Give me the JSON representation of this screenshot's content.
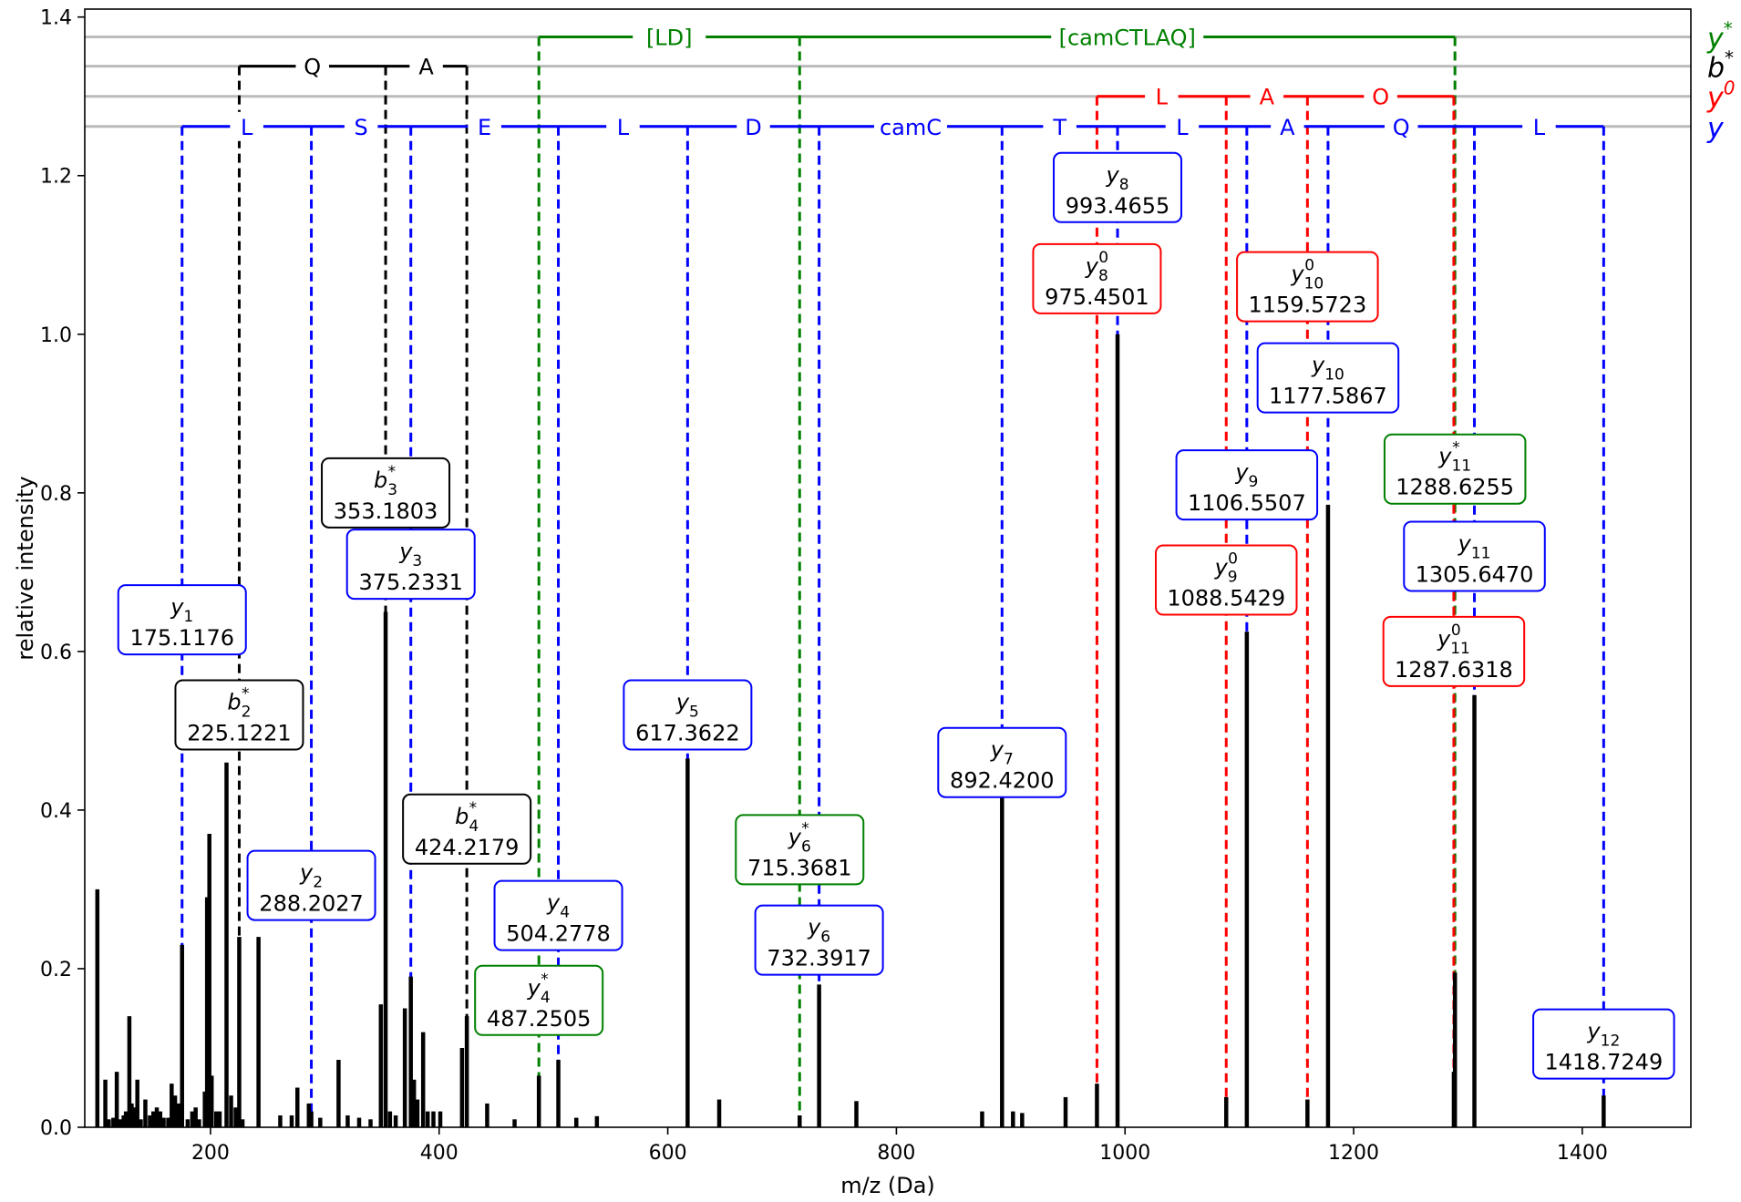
{
  "chart_data": {
    "type": "bar",
    "xlabel": "m/z (Da)",
    "ylabel": "relative intensity",
    "xlim": [
      90,
      1495
    ],
    "ylim": [
      0,
      1.41
    ],
    "x_ticks": [
      200,
      400,
      600,
      800,
      1000,
      1200,
      1400
    ],
    "x_tick_labels": [
      "200",
      "400",
      "600",
      "800",
      "1000",
      "1200",
      "1400"
    ],
    "y_ticks": [
      0.0,
      0.2,
      0.4,
      0.6,
      0.8,
      1.0,
      1.2,
      1.4
    ],
    "y_tick_labels": [
      "0.0",
      "0.2",
      "0.4",
      "0.6",
      "0.8",
      "1.0",
      "1.2",
      "1.4"
    ],
    "colors": {
      "y": "#0000ff",
      "b_star": "#000000",
      "y_zero": "#ff0000",
      "y_star": "#008000",
      "peaks": "#000000",
      "series_rules": "#bbbbbb"
    },
    "peaks": [
      {
        "mz": 101,
        "i": 0.3
      },
      {
        "mz": 108,
        "i": 0.06
      },
      {
        "mz": 111,
        "i": 0.01
      },
      {
        "mz": 115,
        "i": 0.012
      },
      {
        "mz": 118,
        "i": 0.07
      },
      {
        "mz": 121,
        "i": 0.01
      },
      {
        "mz": 124,
        "i": 0.015
      },
      {
        "mz": 126,
        "i": 0.02
      },
      {
        "mz": 129,
        "i": 0.14
      },
      {
        "mz": 131,
        "i": 0.03
      },
      {
        "mz": 133,
        "i": 0.025
      },
      {
        "mz": 136,
        "i": 0.06
      },
      {
        "mz": 139,
        "i": 0.01
      },
      {
        "mz": 143,
        "i": 0.035
      },
      {
        "mz": 147,
        "i": 0.015
      },
      {
        "mz": 150,
        "i": 0.02
      },
      {
        "mz": 153,
        "i": 0.025
      },
      {
        "mz": 156,
        "i": 0.02
      },
      {
        "mz": 159,
        "i": 0.012
      },
      {
        "mz": 163,
        "i": 0.012
      },
      {
        "mz": 166,
        "i": 0.055
      },
      {
        "mz": 169,
        "i": 0.04
      },
      {
        "mz": 172,
        "i": 0.03
      },
      {
        "mz": 175.1176,
        "i": 0.23
      },
      {
        "mz": 180,
        "i": 0.01
      },
      {
        "mz": 184,
        "i": 0.02
      },
      {
        "mz": 187,
        "i": 0.025
      },
      {
        "mz": 190,
        "i": 0.01
      },
      {
        "mz": 195,
        "i": 0.045
      },
      {
        "mz": 197,
        "i": 0.29
      },
      {
        "mz": 199,
        "i": 0.37
      },
      {
        "mz": 201,
        "i": 0.065
      },
      {
        "mz": 205,
        "i": 0.02
      },
      {
        "mz": 208,
        "i": 0.02
      },
      {
        "mz": 214,
        "i": 0.46
      },
      {
        "mz": 218,
        "i": 0.04
      },
      {
        "mz": 222,
        "i": 0.025
      },
      {
        "mz": 225.1221,
        "i": 0.24
      },
      {
        "mz": 228,
        "i": 0.01
      },
      {
        "mz": 242,
        "i": 0.24
      },
      {
        "mz": 261,
        "i": 0.015
      },
      {
        "mz": 271,
        "i": 0.015
      },
      {
        "mz": 276,
        "i": 0.05
      },
      {
        "mz": 286,
        "i": 0.03
      },
      {
        "mz": 288.2027,
        "i": 0.02
      },
      {
        "mz": 296,
        "i": 0.012
      },
      {
        "mz": 312,
        "i": 0.085
      },
      {
        "mz": 320,
        "i": 0.015
      },
      {
        "mz": 330,
        "i": 0.012
      },
      {
        "mz": 340,
        "i": 0.01
      },
      {
        "mz": 349,
        "i": 0.155
      },
      {
        "mz": 353.1803,
        "i": 0.65
      },
      {
        "mz": 357,
        "i": 0.02
      },
      {
        "mz": 362,
        "i": 0.015
      },
      {
        "mz": 370,
        "i": 0.15
      },
      {
        "mz": 375.2331,
        "i": 0.19
      },
      {
        "mz": 378,
        "i": 0.06
      },
      {
        "mz": 381,
        "i": 0.035
      },
      {
        "mz": 386,
        "i": 0.12
      },
      {
        "mz": 390,
        "i": 0.02
      },
      {
        "mz": 395,
        "i": 0.02
      },
      {
        "mz": 401,
        "i": 0.02
      },
      {
        "mz": 420,
        "i": 0.1
      },
      {
        "mz": 424.2179,
        "i": 0.14
      },
      {
        "mz": 442,
        "i": 0.03
      },
      {
        "mz": 466,
        "i": 0.01
      },
      {
        "mz": 487.2505,
        "i": 0.065
      },
      {
        "mz": 504.2778,
        "i": 0.085
      },
      {
        "mz": 520,
        "i": 0.012
      },
      {
        "mz": 538,
        "i": 0.014
      },
      {
        "mz": 617.3622,
        "i": 0.465
      },
      {
        "mz": 645,
        "i": 0.035
      },
      {
        "mz": 715.3681,
        "i": 0.015
      },
      {
        "mz": 732.3917,
        "i": 0.18
      },
      {
        "mz": 765,
        "i": 0.033
      },
      {
        "mz": 875,
        "i": 0.02
      },
      {
        "mz": 892.42,
        "i": 0.42
      },
      {
        "mz": 902,
        "i": 0.02
      },
      {
        "mz": 910,
        "i": 0.018
      },
      {
        "mz": 948,
        "i": 0.038
      },
      {
        "mz": 975.4501,
        "i": 0.055
      },
      {
        "mz": 993.4655,
        "i": 1.0
      },
      {
        "mz": 1088.5429,
        "i": 0.038
      },
      {
        "mz": 1106.5507,
        "i": 0.625
      },
      {
        "mz": 1159.5723,
        "i": 0.035
      },
      {
        "mz": 1177.5867,
        "i": 0.785
      },
      {
        "mz": 1287.6318,
        "i": 0.07
      },
      {
        "mz": 1288.6255,
        "i": 0.195
      },
      {
        "mz": 1305.647,
        "i": 0.545
      },
      {
        "mz": 1418.7249,
        "i": 0.04
      }
    ],
    "fragment_lines": [
      {
        "series": "b_star",
        "x": 225.1221,
        "y_top": 1.338
      },
      {
        "series": "b_star",
        "x": 353.1803,
        "y_top": 1.338
      },
      {
        "series": "b_star",
        "x": 424.2179,
        "y_top": 1.338
      },
      {
        "series": "y_star",
        "x": 487.2505,
        "y_top": 1.375
      },
      {
        "series": "y_star",
        "x": 715.3681,
        "y_top": 1.375
      },
      {
        "series": "y_star",
        "x": 1288.6255,
        "y_top": 1.375
      },
      {
        "series": "y_zero",
        "x": 975.4501,
        "y_top": 1.3
      },
      {
        "series": "y_zero",
        "x": 1088.5429,
        "y_top": 1.3
      },
      {
        "series": "y_zero",
        "x": 1159.5723,
        "y_top": 1.3
      },
      {
        "series": "y_zero",
        "x": 1287.6318,
        "y_top": 1.3
      },
      {
        "series": "y",
        "x": 175.1176,
        "y_top": 1.262
      },
      {
        "series": "y",
        "x": 288.2027,
        "y_top": 1.262
      },
      {
        "series": "y",
        "x": 375.2331,
        "y_top": 1.262
      },
      {
        "series": "y",
        "x": 504.2778,
        "y_top": 1.262
      },
      {
        "series": "y",
        "x": 617.3622,
        "y_top": 1.262
      },
      {
        "series": "y",
        "x": 732.3917,
        "y_top": 1.262
      },
      {
        "series": "y",
        "x": 892.42,
        "y_top": 1.262
      },
      {
        "series": "y",
        "x": 993.4655,
        "y_top": 1.262
      },
      {
        "series": "y",
        "x": 1106.5507,
        "y_top": 1.262
      },
      {
        "series": "y",
        "x": 1177.5867,
        "y_top": 1.262
      },
      {
        "series": "y",
        "x": 1305.647,
        "y_top": 1.262
      },
      {
        "series": "y",
        "x": 1418.7249,
        "y_top": 1.262
      }
    ],
    "series_rules": [
      {
        "series": "y_star",
        "y": 1.375,
        "legend_base": "y",
        "legend_sup": "*"
      },
      {
        "series": "b_star",
        "y": 1.338,
        "legend_base": "b",
        "legend_sup": "*"
      },
      {
        "series": "y_zero",
        "y": 1.3,
        "legend_base": "y",
        "legend_sup": "0"
      },
      {
        "series": "y",
        "y": 1.262,
        "legend_base": "y",
        "legend_sup": ""
      }
    ],
    "sequence_ladders": [
      {
        "series": "y",
        "y": 1.262,
        "x_start": 175.1176,
        "x_end": 1418.7249,
        "labels": [
          {
            "text": "L",
            "x": 231.66
          },
          {
            "text": "S",
            "x": 331.72
          },
          {
            "text": "E",
            "x": 439.76
          },
          {
            "text": "L",
            "x": 560.82
          },
          {
            "text": "D",
            "x": 674.88
          },
          {
            "text": "camC",
            "x": 812.41
          },
          {
            "text": "T",
            "x": 942.94
          },
          {
            "text": "L",
            "x": 1050.01
          },
          {
            "text": "A",
            "x": 1142.07
          },
          {
            "text": "Q",
            "x": 1241.62
          },
          {
            "text": "L",
            "x": 1362.19
          }
        ]
      },
      {
        "series": "y_zero",
        "y": 1.3,
        "x_start": 975.4501,
        "x_end": 1287.6318,
        "labels": [
          {
            "text": "L",
            "x": 1032.0
          },
          {
            "text": "A",
            "x": 1124.06
          },
          {
            "text": "O",
            "x": 1223.6
          }
        ]
      },
      {
        "series": "b_star",
        "y": 1.338,
        "x_start": 225.1221,
        "x_end": 424.2179,
        "labels": [
          {
            "text": "Q",
            "x": 289.15
          },
          {
            "text": "A",
            "x": 388.7
          }
        ]
      },
      {
        "series": "y_star",
        "y": 1.375,
        "x_start": 487.2505,
        "x_end": 1288.6255,
        "labels": [
          {
            "text": "[LD]",
            "x": 601.31
          },
          {
            "text": "[camCTLAQ]",
            "x": 1002.0
          }
        ]
      }
    ],
    "annotations": [
      {
        "series": "y",
        "ion": "y",
        "sub": "1",
        "sup": "",
        "mz_label": "175.1176",
        "x": 175.1176,
        "y": 0.64
      },
      {
        "series": "b_star",
        "ion": "b",
        "sub": "2",
        "sup": "*",
        "mz_label": "225.1221",
        "x": 225.1221,
        "y": 0.52
      },
      {
        "series": "y",
        "ion": "y",
        "sub": "2",
        "sup": "",
        "mz_label": "288.2027",
        "x": 288.2027,
        "y": 0.305
      },
      {
        "series": "b_star",
        "ion": "b",
        "sub": "3",
        "sup": "*",
        "mz_label": "353.1803",
        "x": 353.1803,
        "y": 0.8
      },
      {
        "series": "y",
        "ion": "y",
        "sub": "3",
        "sup": "",
        "mz_label": "375.2331",
        "x": 375.2331,
        "y": 0.71
      },
      {
        "series": "b_star",
        "ion": "b",
        "sub": "4",
        "sup": "*",
        "mz_label": "424.2179",
        "x": 424.2179,
        "y": 0.376
      },
      {
        "series": "y",
        "ion": "y",
        "sub": "4",
        "sup": "",
        "mz_label": "504.2778",
        "x": 504.2778,
        "y": 0.267
      },
      {
        "series": "y_star",
        "ion": "y",
        "sub": "4",
        "sup": "*",
        "mz_label": "487.2505",
        "x": 487.2505,
        "y": 0.16
      },
      {
        "series": "y",
        "ion": "y",
        "sub": "5",
        "sup": "",
        "mz_label": "617.3622",
        "x": 617.3622,
        "y": 0.52
      },
      {
        "series": "y_star",
        "ion": "y",
        "sub": "6",
        "sup": "*",
        "mz_label": "715.3681",
        "x": 715.3681,
        "y": 0.35
      },
      {
        "series": "y",
        "ion": "y",
        "sub": "6",
        "sup": "",
        "mz_label": "732.3917",
        "x": 732.3917,
        "y": 0.236
      },
      {
        "series": "y",
        "ion": "y",
        "sub": "7",
        "sup": "",
        "mz_label": "892.4200",
        "x": 892.42,
        "y": 0.46
      },
      {
        "series": "y",
        "ion": "y",
        "sub": "8",
        "sup": "",
        "mz_label": "993.4655",
        "x": 993.4655,
        "y": 1.185
      },
      {
        "series": "y_zero",
        "ion": "y",
        "sub": "8",
        "sup": "0",
        "mz_label": "975.4501",
        "x": 975.4501,
        "y": 1.07
      },
      {
        "series": "y_zero",
        "ion": "y",
        "sub": "10",
        "sup": "0",
        "mz_label": "1159.5723",
        "x": 1159.5723,
        "y": 1.06
      },
      {
        "series": "y",
        "ion": "y",
        "sub": "10",
        "sup": "",
        "mz_label": "1177.5867",
        "x": 1177.5867,
        "y": 0.945
      },
      {
        "series": "y",
        "ion": "y",
        "sub": "9",
        "sup": "",
        "mz_label": "1106.5507",
        "x": 1106.5507,
        "y": 0.81
      },
      {
        "series": "y_star",
        "ion": "y",
        "sub": "11",
        "sup": "*",
        "mz_label": "1288.6255",
        "x": 1288.6255,
        "y": 0.83
      },
      {
        "series": "y",
        "ion": "y",
        "sub": "11",
        "sup": "",
        "mz_label": "1305.6470",
        "x": 1305.647,
        "y": 0.72
      },
      {
        "series": "y_zero",
        "ion": "y",
        "sub": "9",
        "sup": "0",
        "mz_label": "1088.5429",
        "x": 1088.5429,
        "y": 0.69
      },
      {
        "series": "y_zero",
        "ion": "y",
        "sub": "11",
        "sup": "0",
        "mz_label": "1287.6318",
        "x": 1287.6318,
        "y": 0.6
      },
      {
        "series": "y",
        "ion": "y",
        "sub": "12",
        "sup": "",
        "mz_label": "1418.7249",
        "x": 1418.7249,
        "y": 0.105
      }
    ]
  }
}
